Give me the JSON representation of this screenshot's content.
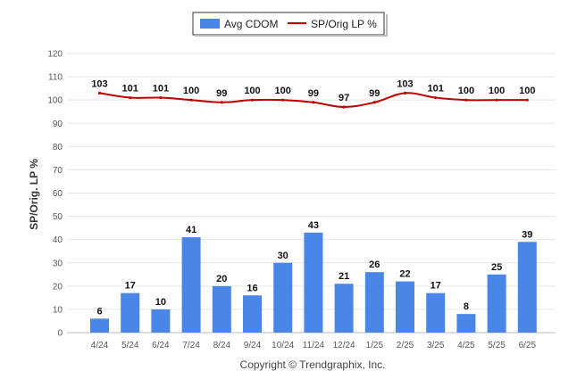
{
  "chart_data": {
    "type": "bar",
    "categories": [
      "4/24",
      "5/24",
      "6/24",
      "7/24",
      "8/24",
      "9/24",
      "10/24",
      "11/24",
      "12/24",
      "1/25",
      "2/25",
      "3/25",
      "4/25",
      "5/25",
      "6/25"
    ],
    "series": [
      {
        "name": "Avg CDOM",
        "type": "bar",
        "color": "#4a86e8",
        "values": [
          6,
          17,
          10,
          41,
          20,
          16,
          30,
          43,
          21,
          26,
          22,
          17,
          8,
          25,
          39
        ]
      },
      {
        "name": "SP/Orig LP %",
        "type": "line",
        "color": "#c00000",
        "values": [
          103,
          101,
          101,
          100,
          99,
          100,
          100,
          99,
          97,
          99,
          103,
          101,
          100,
          100,
          100
        ]
      }
    ],
    "ylabel": "SP/Orig. LP %",
    "ylim": [
      0,
      120
    ],
    "yticks": [
      "0",
      "10",
      "20",
      "30",
      "40",
      "50",
      "60",
      "70",
      "80",
      "90",
      "100",
      "110",
      "120"
    ],
    "grid": true,
    "legend_position": "top-center",
    "copyright": "Copyright © Trendgraphix, Inc."
  }
}
